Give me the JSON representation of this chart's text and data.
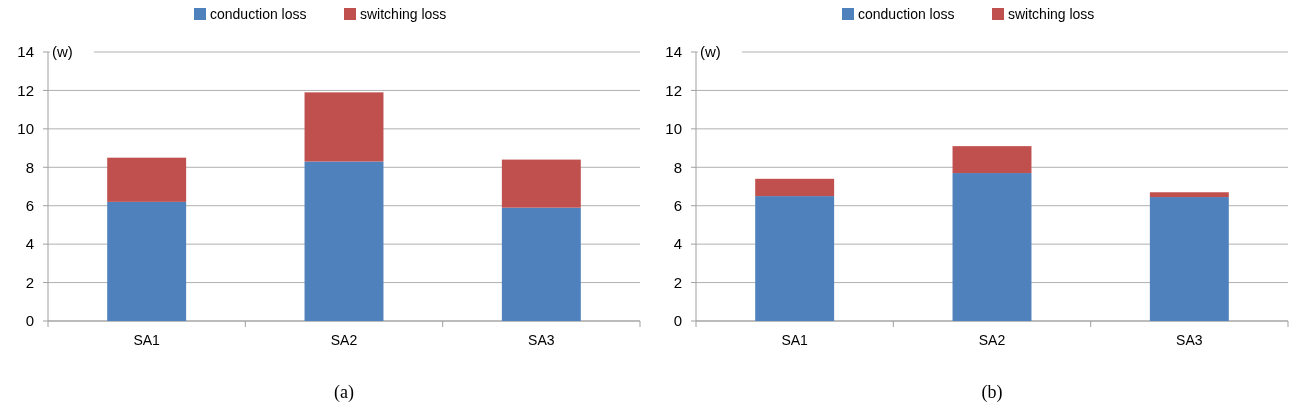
{
  "chart_data": [
    {
      "type": "bar",
      "stacked": true,
      "ylabel": "(w)",
      "categories": [
        "SA1",
        "SA2",
        "SA3"
      ],
      "series": [
        {
          "name": "conduction loss",
          "color": "#4f81bd",
          "values": [
            6.2,
            8.3,
            5.9
          ]
        },
        {
          "name": "switching loss",
          "color": "#c0504d",
          "values": [
            2.3,
            3.6,
            2.5
          ]
        }
      ],
      "ylim": [
        0,
        14
      ],
      "yticks": [
        0,
        2,
        4,
        6,
        8,
        10,
        12,
        14
      ],
      "grid": "y",
      "legend": "top",
      "annotations": [
        "(a)"
      ]
    },
    {
      "type": "bar",
      "stacked": true,
      "ylabel": "(w)",
      "categories": [
        "SA1",
        "SA2",
        "SA3"
      ],
      "series": [
        {
          "name": "conduction loss",
          "color": "#4f81bd",
          "values": [
            6.5,
            7.7,
            6.45
          ]
        },
        {
          "name": "switching loss",
          "color": "#c0504d",
          "values": [
            0.9,
            1.4,
            0.25
          ]
        }
      ],
      "ylim": [
        0,
        14
      ],
      "yticks": [
        0,
        2,
        4,
        6,
        8,
        10,
        12,
        14
      ],
      "grid": "y",
      "legend": "top",
      "annotations": [
        "(b)"
      ]
    }
  ]
}
